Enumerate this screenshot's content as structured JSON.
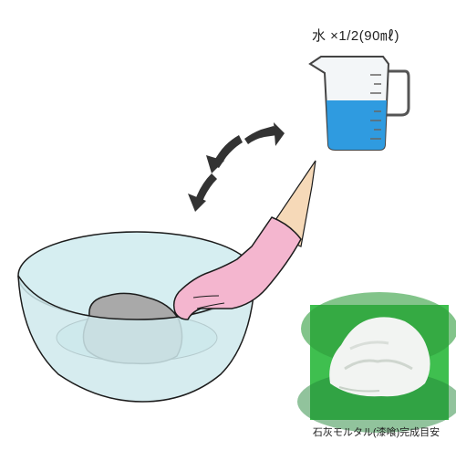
{
  "water_amount_label": "水 ×1/2(90㎖)",
  "photo_caption": "石灰モルタル(漆喰)完成目安",
  "colors": {
    "water": "#2f9be0",
    "bowl": "#d6eef1",
    "bowl_outline": "#1c1c1c",
    "mortar": "#a9a9a9",
    "glove": "#f4b6cf",
    "arm_skin": "#f6d9b8",
    "arrow": "#333333",
    "photo_bg_green": "#3fbf4f",
    "photo_mortar": "#f2f4f2"
  },
  "icons": {
    "measuring_cup": "measuring-cup-icon",
    "pour_arrows": "curved-arrows-icon"
  }
}
